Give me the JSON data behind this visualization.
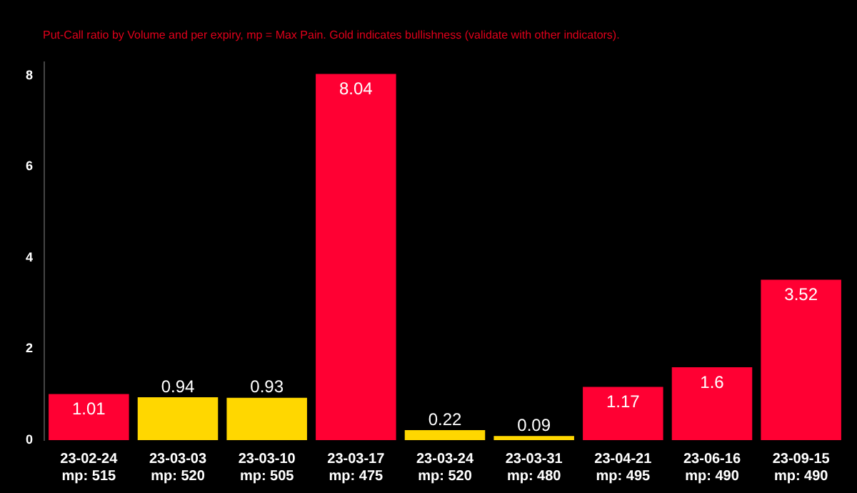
{
  "chart_data": {
    "type": "bar",
    "subtitle": "Put-Call ratio by Volume and per expiry, mp = Max Pain. Gold indicates bullishness (validate with other indicators).",
    "categories": [
      "23-02-24\nmp: 515",
      "23-03-03\nmp: 520",
      "23-03-10\nmp: 505",
      "23-03-17\nmp: 475",
      "23-03-24\nmp: 520",
      "23-03-31\nmp: 480",
      "23-04-21\nmp: 495",
      "23-06-16\nmp: 490",
      "23-09-15\nmp: 490"
    ],
    "values": [
      1.01,
      0.94,
      0.93,
      8.04,
      0.22,
      0.09,
      1.17,
      1.6,
      3.52
    ],
    "colors": [
      "#ff0033",
      "#ffd700",
      "#ffd700",
      "#ff0033",
      "#ffd700",
      "#ffd700",
      "#ff0033",
      "#ff0033",
      "#ff0033"
    ],
    "ylim": [
      0,
      8.3
    ],
    "yticks": [
      0,
      2,
      4,
      6,
      8
    ],
    "grid": false,
    "legend": false,
    "data_labels": true
  }
}
